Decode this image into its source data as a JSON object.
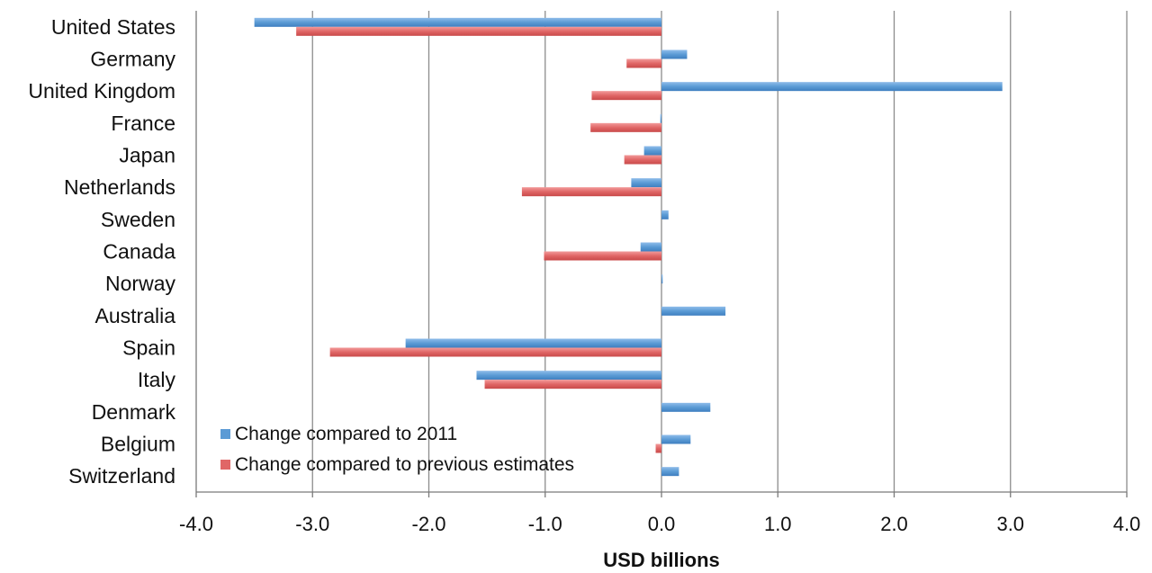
{
  "chart_data": {
    "type": "bar",
    "orientation": "horizontal",
    "categories": [
      "United States",
      "Germany",
      "United Kingdom",
      "France",
      "Japan",
      "Netherlands",
      "Sweden",
      "Canada",
      "Norway",
      "Australia",
      "Spain",
      "Italy",
      "Denmark",
      "Belgium",
      "Switzerland"
    ],
    "series": [
      {
        "name": "Change compared to 2011",
        "color": "#5b9bd5",
        "values": [
          -3.5,
          0.22,
          2.93,
          -0.01,
          -0.15,
          -0.26,
          0.06,
          -0.18,
          0.01,
          0.55,
          -2.2,
          -1.59,
          0.42,
          0.25,
          0.15
        ]
      },
      {
        "name": "Change compared to previous estimates",
        "color": "#e06666",
        "values": [
          -3.14,
          -0.3,
          -0.6,
          -0.61,
          -0.32,
          -1.2,
          0.0,
          -1.01,
          0.0,
          0.0,
          -2.85,
          -1.52,
          0.0,
          -0.05,
          0.0
        ]
      }
    ],
    "xlabel": "USD billions",
    "xlim": [
      -4.0,
      4.0
    ],
    "xticks": [
      "-4.0",
      "-3.0",
      "-2.0",
      "-1.0",
      "0.0",
      "1.0",
      "2.0",
      "3.0",
      "4.0"
    ],
    "grid": "vertical",
    "legend_position": "bottom-left"
  }
}
